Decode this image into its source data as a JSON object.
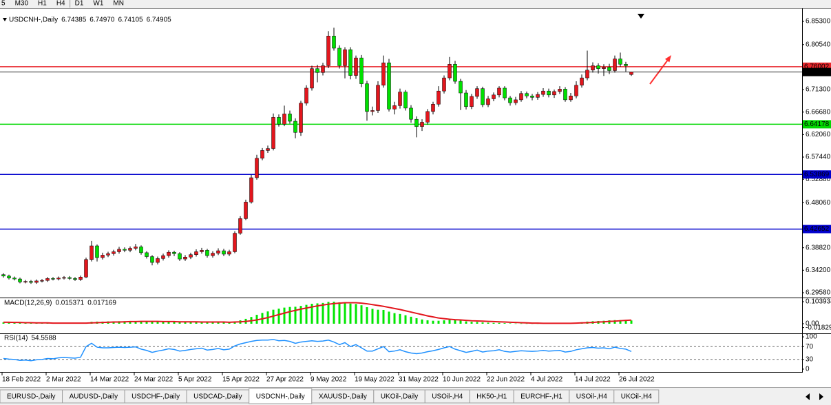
{
  "toolbar": {
    "timeframes": [
      "5",
      "M30",
      "H1",
      "H4",
      "D1",
      "W1",
      "MN"
    ]
  },
  "tabs": [
    "EURUSD-,Daily",
    "AUDUSD-,Daily",
    "USDCHF-,Daily",
    "USDCAD-,Daily",
    "USDCNH-,Daily",
    "XAUUSD-,Daily",
    "UKOil-,Daily",
    "USOil-,H4",
    "HK50-,H1",
    "EURCHF-,H1",
    "USOil-,H4",
    "UKOil-,H4"
  ],
  "active_tab": 4,
  "chart_data": [
    {
      "type": "candlestick",
      "title": "USDCNH-,Daily",
      "high_label": "6.74970",
      "categories": [
        "18 Feb 2022",
        null,
        null,
        null,
        null,
        null,
        null,
        null,
        "2 Mar 2022",
        null,
        null,
        null,
        null,
        null,
        null,
        null,
        "14 Mar 2022",
        null,
        null,
        null,
        null,
        null,
        null,
        null,
        "24 Mar 2022",
        null,
        null,
        null,
        null,
        null,
        null,
        null,
        "5 Apr 2022",
        null,
        null,
        null,
        null,
        null,
        null,
        null,
        "15 Apr 2022",
        null,
        null,
        null,
        null,
        null,
        null,
        null,
        "27 Apr 2022",
        null,
        null,
        null,
        null,
        null,
        null,
        null,
        "9 May 2022",
        null,
        null,
        null,
        null,
        null,
        null,
        null,
        "19 May 2022",
        null,
        null,
        null,
        null,
        null,
        null,
        null,
        "31 May 2022",
        null,
        null,
        null,
        null,
        null,
        null,
        null,
        "10 Jun 2022",
        null,
        null,
        null,
        null,
        null,
        null,
        null,
        "22 Jun 2022",
        null,
        null,
        null,
        null,
        null,
        null,
        null,
        "4 Jul 2022",
        null,
        null,
        null,
        null,
        null,
        null,
        null,
        "14 Jul 2022",
        null,
        null,
        null,
        null,
        null,
        null,
        null,
        "26 Jul 2022",
        null,
        null
      ],
      "open": [
        6.333,
        6.33,
        6.326,
        6.324,
        6.318,
        6.319,
        6.317,
        6.32,
        6.321,
        6.325,
        6.324,
        6.326,
        6.327,
        6.325,
        6.323,
        6.328,
        6.364,
        6.392,
        6.368,
        6.373,
        6.376,
        6.38,
        6.385,
        6.383,
        6.387,
        6.39,
        6.378,
        6.37,
        6.358,
        6.366,
        6.372,
        6.379,
        6.376,
        6.365,
        6.369,
        6.374,
        6.38,
        6.383,
        6.372,
        6.377,
        6.382,
        6.375,
        6.38,
        6.418,
        6.448,
        6.482,
        6.532,
        6.572,
        6.588,
        6.592,
        6.656,
        6.642,
        6.663,
        6.648,
        6.625,
        6.685,
        6.716,
        6.756,
        6.748,
        6.762,
        6.823,
        6.798,
        6.762,
        6.795,
        6.742,
        6.778,
        6.725,
        6.668,
        6.67,
        6.722,
        6.768,
        6.673,
        6.68,
        6.708,
        6.675,
        6.652,
        6.637,
        6.646,
        6.668,
        6.683,
        6.71,
        6.737,
        6.765,
        6.73,
        6.706,
        6.678,
        6.699,
        6.715,
        6.682,
        6.694,
        6.702,
        6.716,
        6.696,
        6.686,
        6.692,
        6.705,
        6.7,
        6.697,
        6.703,
        6.71,
        6.702,
        6.709,
        6.714,
        6.692,
        6.7,
        6.722,
        6.737,
        6.753,
        6.762,
        6.756,
        6.759,
        6.752,
        6.776,
        6.765,
        6.74385
      ],
      "high": [
        6.336,
        6.333,
        6.329,
        6.327,
        6.322,
        6.322,
        6.323,
        6.324,
        6.328,
        6.328,
        6.329,
        6.33,
        6.33,
        6.328,
        6.331,
        6.368,
        6.402,
        6.395,
        6.378,
        6.38,
        6.384,
        6.39,
        6.389,
        6.391,
        6.396,
        6.393,
        6.381,
        6.373,
        6.37,
        6.376,
        6.383,
        6.382,
        6.379,
        6.373,
        6.378,
        6.385,
        6.388,
        6.386,
        6.381,
        6.387,
        6.386,
        6.384,
        6.422,
        6.453,
        6.487,
        6.538,
        6.579,
        6.593,
        6.598,
        6.664,
        6.662,
        6.68,
        6.67,
        6.654,
        6.69,
        6.722,
        6.762,
        6.764,
        6.768,
        6.833,
        6.84,
        6.804,
        6.8,
        6.8,
        6.783,
        6.784,
        6.731,
        6.678,
        6.73,
        6.783,
        6.776,
        6.688,
        6.715,
        6.712,
        6.681,
        6.658,
        6.652,
        6.673,
        6.688,
        6.72,
        6.742,
        6.78,
        6.772,
        6.735,
        6.712,
        6.704,
        6.72,
        6.719,
        6.7,
        6.707,
        6.72,
        6.72,
        6.7,
        6.698,
        6.71,
        6.709,
        6.704,
        6.708,
        6.716,
        6.715,
        6.713,
        6.72,
        6.718,
        6.706,
        6.73,
        6.744,
        6.793,
        6.769,
        6.767,
        6.765,
        6.766,
        6.783,
        6.789,
        6.77,
        6.7497
      ],
      "low": [
        6.327,
        6.323,
        6.321,
        6.315,
        6.315,
        6.314,
        6.314,
        6.317,
        6.318,
        6.321,
        6.321,
        6.323,
        6.322,
        6.32,
        6.32,
        6.326,
        6.36,
        6.36,
        6.364,
        6.369,
        6.372,
        6.376,
        6.379,
        6.379,
        6.383,
        6.374,
        6.366,
        6.352,
        6.354,
        6.362,
        6.368,
        6.371,
        6.361,
        6.361,
        6.365,
        6.37,
        6.376,
        6.368,
        6.368,
        6.373,
        6.371,
        6.371,
        6.377,
        6.415,
        6.445,
        6.479,
        6.528,
        6.568,
        6.583,
        6.588,
        6.637,
        6.638,
        6.643,
        6.613,
        6.618,
        6.68,
        6.711,
        6.728,
        6.742,
        6.757,
        6.793,
        6.756,
        6.736,
        6.734,
        6.735,
        6.718,
        6.649,
        6.66,
        6.665,
        6.717,
        6.668,
        6.662,
        6.674,
        6.67,
        6.645,
        6.615,
        6.628,
        6.641,
        6.662,
        6.678,
        6.705,
        6.732,
        6.725,
        6.671,
        6.672,
        6.673,
        6.694,
        6.677,
        6.677,
        6.689,
        6.697,
        6.691,
        6.68,
        6.681,
        6.688,
        6.695,
        6.691,
        6.692,
        6.698,
        6.697,
        6.696,
        6.704,
        6.688,
        6.688,
        6.695,
        6.717,
        6.732,
        6.748,
        6.746,
        6.741,
        6.745,
        6.748,
        6.76,
        6.75,
        6.74105
      ],
      "close": [
        6.33,
        6.326,
        6.324,
        6.318,
        6.319,
        6.317,
        6.32,
        6.321,
        6.325,
        6.324,
        6.326,
        6.327,
        6.325,
        6.323,
        6.328,
        6.364,
        6.392,
        6.368,
        6.373,
        6.376,
        6.38,
        6.385,
        6.383,
        6.387,
        6.39,
        6.378,
        6.37,
        6.358,
        6.366,
        6.372,
        6.379,
        6.376,
        6.365,
        6.369,
        6.374,
        6.38,
        6.383,
        6.372,
        6.377,
        6.382,
        6.375,
        6.38,
        6.418,
        6.448,
        6.482,
        6.532,
        6.572,
        6.588,
        6.592,
        6.656,
        6.642,
        6.663,
        6.648,
        6.625,
        6.685,
        6.716,
        6.756,
        6.748,
        6.762,
        6.823,
        6.798,
        6.762,
        6.795,
        6.742,
        6.778,
        6.725,
        6.668,
        6.67,
        6.722,
        6.768,
        6.673,
        6.68,
        6.708,
        6.675,
        6.652,
        6.637,
        6.646,
        6.668,
        6.683,
        6.71,
        6.737,
        6.765,
        6.73,
        6.706,
        6.678,
        6.699,
        6.715,
        6.682,
        6.694,
        6.702,
        6.716,
        6.696,
        6.686,
        6.692,
        6.705,
        6.7,
        6.697,
        6.703,
        6.71,
        6.702,
        6.709,
        6.714,
        6.692,
        6.7,
        6.722,
        6.737,
        6.753,
        6.762,
        6.756,
        6.759,
        6.752,
        6.776,
        6.765,
        6.762,
        6.74905
      ],
      "up_color": "#e3161d",
      "down_color": "#00e000",
      "price_line_color": "#000000",
      "ylim": [
        6.2859,
        6.88
      ],
      "yticks": [
        {
          "value": 6.853,
          "label": "6.85300"
        },
        {
          "value": 6.8054,
          "label": "6.80540"
        },
        {
          "value": 6.713,
          "label": "6.71300"
        },
        {
          "value": 6.6668,
          "label": "6.66680"
        },
        {
          "value": 6.6206,
          "label": "6.62060"
        },
        {
          "value": 6.5744,
          "label": "6.57440"
        },
        {
          "value": 6.5288,
          "label": "6.52880"
        },
        {
          "value": 6.4806,
          "label": "6.48060"
        },
        {
          "value": 6.3882,
          "label": "6.38820"
        },
        {
          "value": 6.342,
          "label": "6.34200"
        },
        {
          "value": 6.2958,
          "label": "6.29580"
        }
      ],
      "levels": [
        {
          "value": 6.76002,
          "color": "#e8262b"
        },
        {
          "value": 6.64178,
          "color": "#00d800"
        },
        {
          "value": 6.53869,
          "color": "#0000cd"
        },
        {
          "value": 6.42652,
          "color": "#0000cd"
        }
      ],
      "grid": false
    },
    {
      "type": "macd",
      "title": "MACD(12,26,9)",
      "histogram": {
        "color": "#00e600",
        "values": [
          0.006,
          0.006,
          0.005,
          0.004,
          0.004,
          0.003,
          0.003,
          0.003,
          0.003,
          0.003,
          0.003,
          0.003,
          0.002,
          0.002,
          0.002,
          0.005,
          0.009,
          0.01,
          0.01,
          0.011,
          0.011,
          0.012,
          0.012,
          0.012,
          0.013,
          0.012,
          0.011,
          0.009,
          0.009,
          0.009,
          0.009,
          0.009,
          0.008,
          0.008,
          0.008,
          0.008,
          0.008,
          0.007,
          0.007,
          0.007,
          0.006,
          0.007,
          0.01,
          0.016,
          0.023,
          0.032,
          0.042,
          0.051,
          0.058,
          0.066,
          0.071,
          0.076,
          0.079,
          0.08,
          0.084,
          0.089,
          0.094,
          0.096,
          0.098,
          0.103,
          0.104,
          0.101,
          0.1,
          0.095,
          0.093,
          0.087,
          0.078,
          0.07,
          0.066,
          0.065,
          0.057,
          0.05,
          0.046,
          0.04,
          0.033,
          0.026,
          0.02,
          0.016,
          0.014,
          0.014,
          0.016,
          0.019,
          0.018,
          0.015,
          0.011,
          0.009,
          0.008,
          0.006,
          0.005,
          0.004,
          0.004,
          0.003,
          0.002,
          0.001,
          0.001,
          0.001,
          0.001,
          0.001,
          0.002,
          0.002,
          0.003,
          0.003,
          0.002,
          0.003,
          0.004,
          0.007,
          0.01,
          0.012,
          0.013,
          0.014,
          0.016,
          0.017,
          0.017,
          0.016,
          0.015371
        ]
      },
      "signal": {
        "color": "#e3161d",
        "values": [
          0.007,
          0.007,
          0.006,
          0.006,
          0.005,
          0.005,
          0.004,
          0.004,
          0.004,
          0.003,
          0.003,
          0.003,
          0.003,
          0.003,
          0.003,
          0.003,
          0.004,
          0.005,
          0.006,
          0.007,
          0.008,
          0.008,
          0.009,
          0.01,
          0.01,
          0.011,
          0.011,
          0.011,
          0.011,
          0.01,
          0.01,
          0.01,
          0.009,
          0.009,
          0.009,
          0.009,
          0.008,
          0.008,
          0.008,
          0.008,
          0.008,
          0.007,
          0.008,
          0.009,
          0.011,
          0.014,
          0.018,
          0.023,
          0.029,
          0.036,
          0.043,
          0.05,
          0.057,
          0.063,
          0.069,
          0.074,
          0.079,
          0.084,
          0.088,
          0.092,
          0.095,
          0.097,
          0.099,
          0.099,
          0.099,
          0.097,
          0.094,
          0.09,
          0.086,
          0.082,
          0.077,
          0.072,
          0.067,
          0.061,
          0.055,
          0.049,
          0.043,
          0.037,
          0.032,
          0.027,
          0.024,
          0.021,
          0.019,
          0.018,
          0.016,
          0.014,
          0.013,
          0.012,
          0.011,
          0.01,
          0.009,
          0.008,
          0.007,
          0.006,
          0.005,
          0.004,
          0.003,
          0.003,
          0.002,
          0.002,
          0.002,
          0.002,
          0.002,
          0.002,
          0.003,
          0.004,
          0.005,
          0.006,
          0.008,
          0.009,
          0.011,
          0.012,
          0.014,
          0.016,
          0.017169
        ]
      },
      "ylim": [
        -0.0455,
        0.1202
      ],
      "yticks": [
        0.103934,
        {
          "value": 0,
          "label": "0.00"
        },
        -0.018297
      ]
    },
    {
      "type": "line",
      "title": "RSI(14)",
      "color": "#1e90ff",
      "values": [
        33,
        31,
        30,
        27,
        28,
        26,
        29,
        30,
        33,
        32,
        35,
        36,
        35,
        34,
        37,
        70,
        80,
        68,
        66,
        66,
        67,
        68,
        67,
        68,
        69,
        62,
        58,
        52,
        56,
        59,
        63,
        61,
        56,
        58,
        61,
        63,
        65,
        59,
        61,
        64,
        60,
        62,
        72,
        78,
        82,
        86,
        89,
        90,
        90,
        92,
        88,
        89,
        86,
        80,
        84,
        86,
        88,
        86,
        87,
        90,
        84,
        76,
        82,
        70,
        76,
        66,
        56,
        56,
        63,
        70,
        54,
        56,
        60,
        54,
        50,
        48,
        50,
        54,
        57,
        61,
        66,
        70,
        62,
        57,
        52,
        55,
        59,
        53,
        56,
        57,
        60,
        55,
        53,
        55,
        57,
        56,
        55,
        56,
        58,
        56,
        57,
        58,
        53,
        55,
        60,
        63,
        66,
        67,
        65,
        66,
        63,
        68,
        64,
        62,
        54.5588
      ],
      "ylim": [
        -8.7,
        108.7
      ],
      "yticks": [
        100,
        70,
        30,
        0
      ]
    }
  ]
}
